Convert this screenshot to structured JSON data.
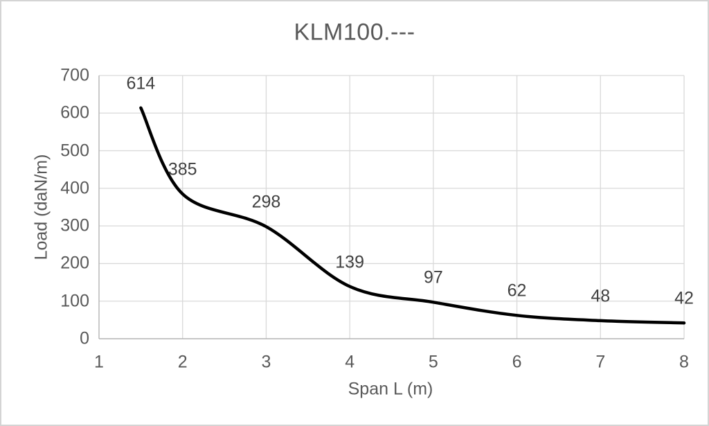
{
  "chart_data": {
    "type": "line",
    "title": "KLM100.---",
    "xlabel": "Span L (m)",
    "ylabel": "Load (daN/m)",
    "x": [
      1.5,
      2,
      3,
      4,
      5,
      6,
      7,
      8
    ],
    "values": [
      614,
      385,
      298,
      139,
      97,
      62,
      48,
      42
    ],
    "point_labels": [
      "614",
      "385",
      "298",
      "139",
      "97",
      "62",
      "48",
      "42"
    ],
    "x_ticks": [
      1,
      2,
      3,
      4,
      5,
      6,
      7,
      8
    ],
    "y_ticks": [
      0,
      100,
      200,
      300,
      400,
      500,
      600,
      700
    ],
    "xlim": [
      1,
      8
    ],
    "ylim": [
      0,
      700
    ],
    "grid": "on",
    "legend": "none",
    "line_style": "smoothed",
    "colors": {
      "line": "#000000",
      "gridline": "#d9d9d9",
      "axis_line": "#b3b3b3",
      "tick_text": "#595959",
      "title_text": "#595959",
      "axis_title_text": "#595959",
      "data_label_text": "#404040",
      "background": "#ffffff",
      "frame_border": "#d4d4d4"
    }
  }
}
